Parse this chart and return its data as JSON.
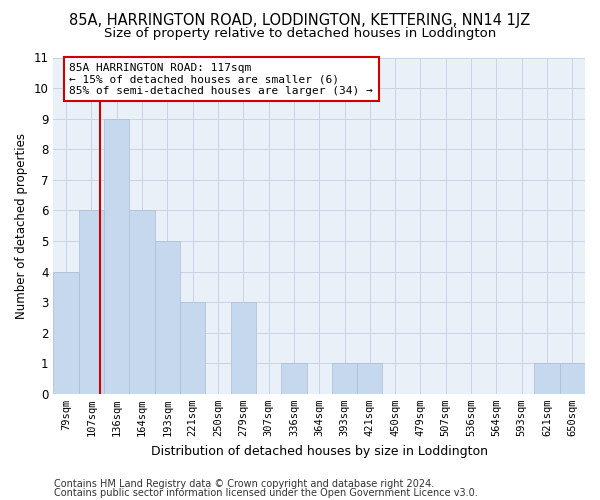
{
  "title": "85A, HARRINGTON ROAD, LODDINGTON, KETTERING, NN14 1JZ",
  "subtitle": "Size of property relative to detached houses in Loddington",
  "xlabel": "Distribution of detached houses by size in Loddington",
  "ylabel": "Number of detached properties",
  "categories": [
    "79sqm",
    "107sqm",
    "136sqm",
    "164sqm",
    "193sqm",
    "221sqm",
    "250sqm",
    "279sqm",
    "307sqm",
    "336sqm",
    "364sqm",
    "393sqm",
    "421sqm",
    "450sqm",
    "479sqm",
    "507sqm",
    "536sqm",
    "564sqm",
    "593sqm",
    "621sqm",
    "650sqm"
  ],
  "bar_heights": [
    4,
    6,
    9,
    6,
    5,
    3,
    0,
    3,
    0,
    1,
    0,
    1,
    1,
    0,
    0,
    0,
    0,
    0,
    0,
    1,
    1
  ],
  "bar_color": "#c5d8ed",
  "bar_edge_color": "#aabdd4",
  "grid_color": "#c8d4e8",
  "vline_color": "#cc0000",
  "annotation_text": "85A HARRINGTON ROAD: 117sqm\n← 15% of detached houses are smaller (6)\n85% of semi-detached houses are larger (34) →",
  "annotation_box_color": "#ffffff",
  "annotation_box_edge": "#cc0000",
  "ylim": [
    0,
    11
  ],
  "yticks": [
    0,
    1,
    2,
    3,
    4,
    5,
    6,
    7,
    8,
    9,
    10,
    11
  ],
  "footer1": "Contains HM Land Registry data © Crown copyright and database right 2024.",
  "footer2": "Contains public sector information licensed under the Open Government Licence v3.0.",
  "title_fontsize": 10.5,
  "subtitle_fontsize": 9.5,
  "xlabel_fontsize": 9,
  "ylabel_fontsize": 8.5,
  "tick_fontsize": 7.5,
  "footer_fontsize": 7,
  "annot_fontsize": 8
}
